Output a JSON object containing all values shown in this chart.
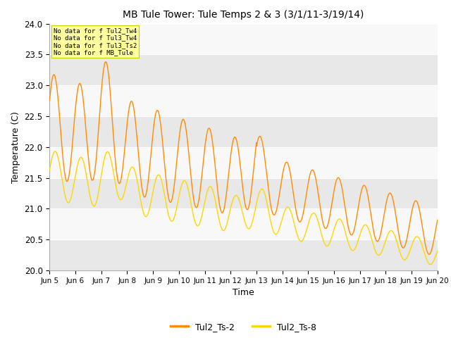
{
  "title": "MB Tule Tower: Tule Temps 2 & 3 (3/1/11-3/19/14)",
  "xlabel": "Time",
  "ylabel": "Temperature (C)",
  "ylim": [
    20.0,
    24.0
  ],
  "yticks": [
    20.0,
    20.5,
    21.0,
    21.5,
    22.0,
    22.5,
    23.0,
    23.5,
    24.0
  ],
  "xtick_labels": [
    "Jun 5",
    "Jun 6",
    "Jun 7",
    "Jun 8",
    "Jun 9",
    "Jun 10",
    "Jun 11",
    "Jun 12",
    "Jun 13",
    "Jun 14",
    "Jun 15",
    "Jun 16",
    "Jun 17",
    "Jun 18",
    "Jun 19",
    "Jun 20"
  ],
  "color_ts2": "#FF8C00",
  "color_ts8": "#FFD700",
  "legend_labels": [
    "Tul2_Ts-2",
    "Tul2_Ts-8"
  ],
  "annotations": [
    "No data for f Tul2_Tw4",
    "No data for f Tul3_Tw4",
    "No data for f Tul3_Ts2",
    "No data for f MB_Tule"
  ],
  "annotation_box_color": "#FFFFA0",
  "band_colors": [
    "#e8e8e8",
    "#f8f8f8"
  ],
  "figsize": [
    6.4,
    4.8
  ],
  "dpi": 100
}
